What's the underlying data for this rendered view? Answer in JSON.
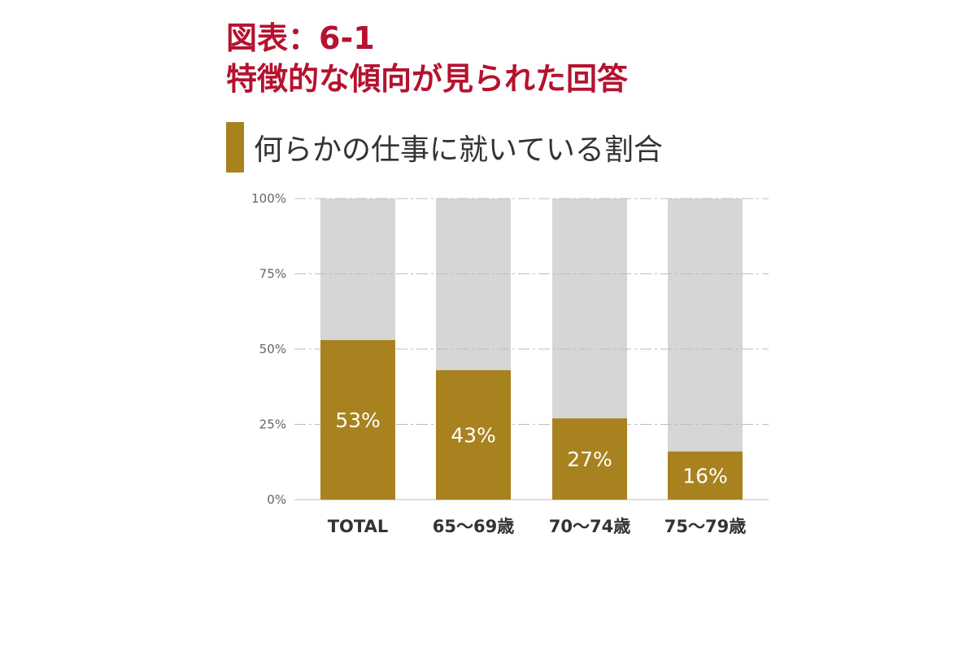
{
  "figure": {
    "title_line1": "図表：6-1",
    "title_line2": "特徴的な傾向が見られた回答",
    "title_color": "#b5122f"
  },
  "chart_data": {
    "type": "bar",
    "stacked": true,
    "title": "何らかの仕事に就いている割合",
    "categories": [
      "TOTAL",
      "65〜69歳",
      "70〜74歳",
      "75〜79歳"
    ],
    "values": [
      53,
      43,
      27,
      16
    ],
    "data_labels": [
      "53%",
      "43%",
      "27%",
      "16%"
    ],
    "ylim": [
      0,
      100
    ],
    "yticks": [
      0,
      25,
      50,
      75,
      100
    ],
    "ytick_labels": [
      "0%",
      "25%",
      "50%",
      "75%",
      "100%"
    ],
    "xlabel": "",
    "ylabel": "",
    "grid": true,
    "colors": {
      "value_bar": "#a8821f",
      "remainder_bar": "#d6d6d6",
      "grid": "#bdbdbd",
      "marker": "#a8821f"
    }
  }
}
